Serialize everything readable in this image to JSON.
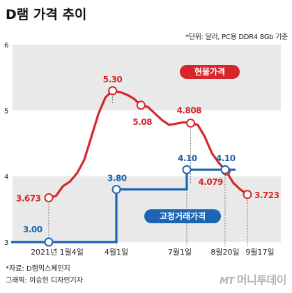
{
  "header": {
    "title": "D램 가격 추이",
    "unit_note": "*단위: 달러, PC용 DDR4 8Gb 기준"
  },
  "footer": {
    "source": "*자료: D램익스체인지",
    "credit": "그래픽: 이승현 디자인기자",
    "brand_prefix": "MT",
    "brand_name": "머니투데이"
  },
  "chart_data": {
    "type": "line",
    "ylim": [
      3,
      6
    ],
    "yticks": [
      "3",
      "4",
      "5",
      "6"
    ],
    "x_tick_labels": [
      "2021년 1월4일",
      "4월1일",
      "7월1일",
      "8월20일",
      "9월17일"
    ],
    "series": [
      {
        "name": "현물가격",
        "color": "#d6262c",
        "values": [
          3.673,
          3.7,
          3.85,
          3.92,
          4.05,
          4.25,
          4.6,
          4.95,
          5.2,
          5.3,
          5.28,
          5.24,
          5.18,
          5.08,
          5.05,
          4.95,
          4.85,
          4.78,
          4.8,
          4.82,
          4.808,
          4.78,
          4.6,
          4.35,
          4.2,
          4.079,
          3.9,
          3.8,
          3.723
        ],
        "labels": [
          {
            "index": 0,
            "text": "3.673"
          },
          {
            "index": 9,
            "text": "5.30"
          },
          {
            "index": 13,
            "text": "5.08"
          },
          {
            "index": 20,
            "text": "4.808"
          },
          {
            "index": 25,
            "text": "4.079"
          },
          {
            "index": 28,
            "text": "3.723"
          }
        ]
      },
      {
        "name": "고정거래가격",
        "color": "#1c64b4",
        "steps": [
          {
            "value": 3.0,
            "label": "3.00"
          },
          {
            "value": 3.8,
            "label": "3.80"
          },
          {
            "value": 4.1,
            "label": "4.10"
          },
          {
            "value": 4.1,
            "label": "4.10"
          }
        ]
      }
    ],
    "shaded_bands": [
      [
        5,
        6
      ],
      [
        3,
        4
      ]
    ]
  },
  "colors": {
    "band": "#e9e9e9",
    "spot": "#d6262c",
    "contract": "#1c64b4"
  }
}
